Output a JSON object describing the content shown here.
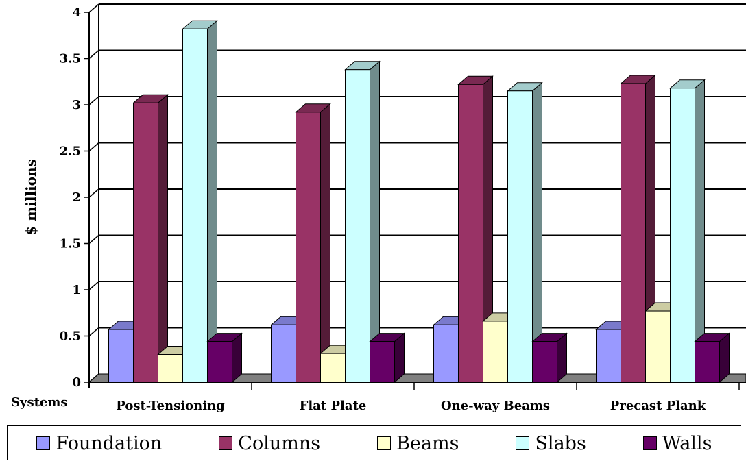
{
  "chart_data": {
    "type": "bar",
    "title": "",
    "ylabel": "$ millions",
    "xlabel": "Systems",
    "ylim": [
      0,
      4
    ],
    "yticks": [
      "0",
      "0.5",
      "1",
      "1.5",
      "2",
      "2.5",
      "3",
      "3.5",
      "4"
    ],
    "categories": [
      "Post-Tensioning",
      "Flat Plate",
      "One-way Beams",
      "Precast Plank"
    ],
    "series": [
      {
        "name": "Foundation",
        "color": "#9999ff",
        "values": [
          0.57,
          0.62,
          0.62,
          0.57
        ]
      },
      {
        "name": "Columns",
        "color": "#993366",
        "values": [
          3.02,
          2.92,
          3.22,
          3.23
        ]
      },
      {
        "name": "Beams",
        "color": "#ffffcc",
        "values": [
          0.3,
          0.31,
          0.66,
          0.77
        ]
      },
      {
        "name": "Slabs",
        "color": "#ccffff",
        "values": [
          3.82,
          3.38,
          3.15,
          3.18
        ]
      },
      {
        "name": "Walls",
        "color": "#660066",
        "values": [
          0.44,
          0.44,
          0.44,
          0.44
        ]
      }
    ],
    "grid": true,
    "legend": "bottom",
    "style": "3d-columns"
  }
}
